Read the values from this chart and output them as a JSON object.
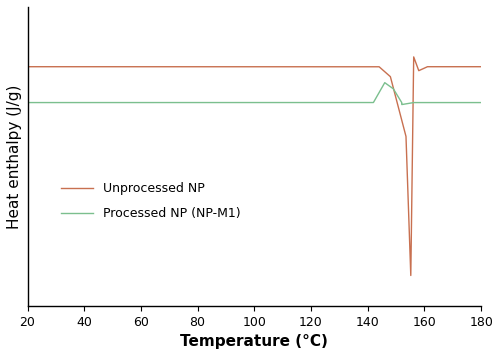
{
  "title": "",
  "xlabel": "Temperature (°C)",
  "ylabel": "Heat enthalpy (J/g)",
  "xlim": [
    20,
    180
  ],
  "ylim": [
    -1.2,
    0.3
  ],
  "line1_color": "#c87050",
  "line2_color": "#7bbf8e",
  "line1_label": "Unprocessed NP",
  "line2_label": "Processed NP (NP-M1)",
  "line1_base": 0.0,
  "line2_base": -0.18,
  "line1_trough": -1.05,
  "line2_trough_depth": -0.1,
  "background_color": "#ffffff",
  "legend_fontsize": 9,
  "axis_label_fontsize": 11,
  "tick_fontsize": 9
}
